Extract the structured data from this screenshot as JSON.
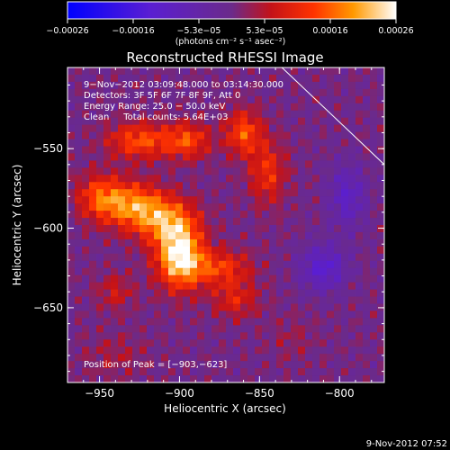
{
  "chart_data": {
    "type": "heatmap",
    "title": "Reconstructed RHESSI Image",
    "xlabel": "Heliocentric X (arcsec)",
    "ylabel": "Heliocentric Y (arcsec)",
    "xlim": [
      -970,
      -772
    ],
    "ylim": [
      -697,
      -499
    ],
    "x_ticks": [
      -950,
      -900,
      -850,
      -800
    ],
    "x_tick_labels": [
      "−950",
      "−900",
      "−850",
      "−800"
    ],
    "y_ticks": [
      -550,
      -600,
      -650
    ],
    "y_tick_labels": [
      "−550",
      "−600",
      "−650"
    ],
    "colorbar": {
      "min": -0.00026,
      "max": 0.00026,
      "tick_labels": [
        "−0.00026",
        "−0.00016",
        "−5.3e−05",
        "5.3e−05",
        "0.00016",
        "0.00026"
      ],
      "unit_label": "(photons cm⁻² s⁻¹ asec⁻²)"
    },
    "annotations": [
      "9−Nov−2012 03:09:48.000 to 03:14:30.000",
      "Detectors: 3F 5F 6F 7F 8F 9F, Att 0",
      "Energy Range: 25.0 − 50.0 keV",
      "Clean     Total counts: 5.64E+03"
    ],
    "peak_label": "Position of Peak = [−903,−623]",
    "peak": [
      -903,
      -623
    ],
    "source_blobs": [
      {
        "x": -900,
        "y": -617,
        "sx": 10,
        "sy": 14,
        "amp": 0.00026
      },
      {
        "x": -910,
        "y": -595,
        "sx": 14,
        "sy": 10,
        "amp": 0.00015
      },
      {
        "x": -930,
        "y": -585,
        "sx": 14,
        "sy": 10,
        "amp": 0.00016
      },
      {
        "x": -950,
        "y": -580,
        "sx": 10,
        "sy": 10,
        "amp": 0.00012
      },
      {
        "x": -925,
        "y": -545,
        "sx": 14,
        "sy": 8,
        "amp": 0.00014
      },
      {
        "x": -895,
        "y": -545,
        "sx": 10,
        "sy": 8,
        "amp": 0.00013
      },
      {
        "x": -860,
        "y": -540,
        "sx": 8,
        "sy": 10,
        "amp": 0.00014
      },
      {
        "x": -845,
        "y": -565,
        "sx": 8,
        "sy": 14,
        "amp": 0.00011
      },
      {
        "x": -875,
        "y": -625,
        "sx": 14,
        "sy": 8,
        "amp": 0.00012
      },
      {
        "x": -865,
        "y": -645,
        "sx": 10,
        "sy": 8,
        "amp": 9e-05
      },
      {
        "x": -940,
        "y": -640,
        "sx": 8,
        "sy": 8,
        "amp": 7e-05
      },
      {
        "x": -810,
        "y": -625,
        "sx": 10,
        "sy": 10,
        "amp": -0.00012
      },
      {
        "x": -795,
        "y": -580,
        "sx": 8,
        "sy": 14,
        "amp": -0.0001
      },
      {
        "x": -940,
        "y": -680,
        "sx": 14,
        "sy": 10,
        "amp": 4e-05
      },
      {
        "x": -830,
        "y": -670,
        "sx": 10,
        "sy": 10,
        "amp": 3e-05
      }
    ],
    "limb_line": [
      [
        -836,
        -499
      ],
      [
        -772,
        -560
      ]
    ]
  },
  "footer": {
    "timestamp": "9-Nov-2012 07:52"
  }
}
